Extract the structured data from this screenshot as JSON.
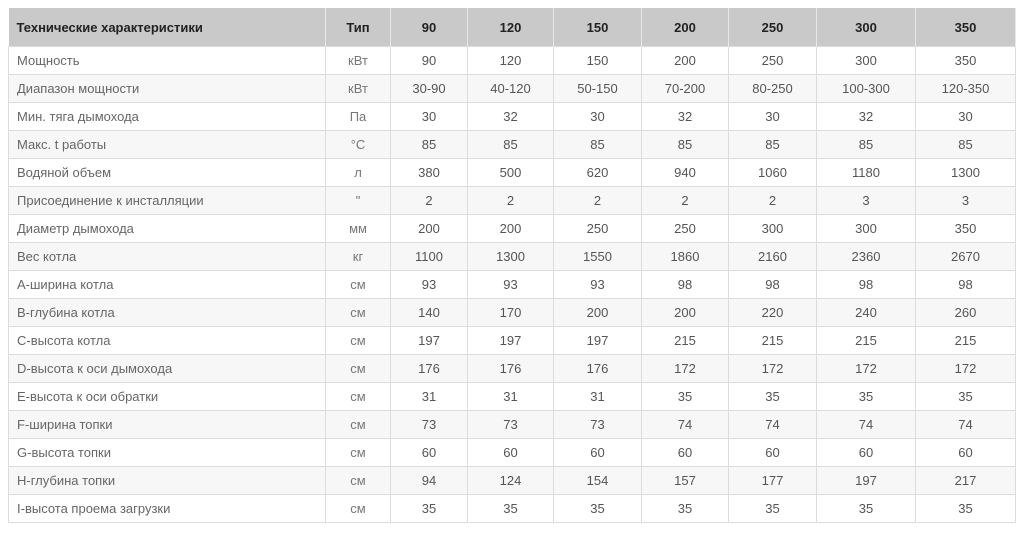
{
  "table": {
    "headers": [
      "Технические характеристики",
      "Тип",
      "90",
      "120",
      "150",
      "200",
      "250",
      "300",
      "350"
    ],
    "rows": [
      [
        "Мощность",
        "кВт",
        "90",
        "120",
        "150",
        "200",
        "250",
        "300",
        "350"
      ],
      [
        "Диапазон мощности",
        "кВт",
        "30-90",
        "40-120",
        "50-150",
        "70-200",
        "80-250",
        "100-300",
        "120-350"
      ],
      [
        "Мин. тяга дымохода",
        "Па",
        "30",
        "32",
        "30",
        "32",
        "30",
        "32",
        "30"
      ],
      [
        "Макс. t работы",
        "°C",
        "85",
        "85",
        "85",
        "85",
        "85",
        "85",
        "85"
      ],
      [
        "Водяной объем",
        "л",
        "380",
        "500",
        "620",
        "940",
        "1060",
        "1180",
        "1300"
      ],
      [
        "Присоединение к инсталляции",
        "\"",
        "2",
        "2",
        "2",
        "2",
        "2",
        "3",
        "3"
      ],
      [
        "Диаметр дымохода",
        "мм",
        "200",
        "200",
        "250",
        "250",
        "300",
        "300",
        "350"
      ],
      [
        "Вес котла",
        "кг",
        "1100",
        "1300",
        "1550",
        "1860",
        "2160",
        "2360",
        "2670"
      ],
      [
        "A-ширина котла",
        "см",
        "93",
        "93",
        "93",
        "98",
        "98",
        "98",
        "98"
      ],
      [
        "B-глубина котла",
        "см",
        "140",
        "170",
        "200",
        "200",
        "220",
        "240",
        "260"
      ],
      [
        "C-высота котла",
        "см",
        "197",
        "197",
        "197",
        "215",
        "215",
        "215",
        "215"
      ],
      [
        "D-высота к оси дымохода",
        "см",
        "176",
        "176",
        "176",
        "172",
        "172",
        "172",
        "172"
      ],
      [
        "E-высота к оси обратки",
        "см",
        "31",
        "31",
        "31",
        "35",
        "35",
        "35",
        "35"
      ],
      [
        "F-ширина топки",
        "см",
        "73",
        "73",
        "73",
        "74",
        "74",
        "74",
        "74"
      ],
      [
        "G-высота топки",
        "см",
        "60",
        "60",
        "60",
        "60",
        "60",
        "60",
        "60"
      ],
      [
        "H-глубина топки",
        "см",
        "94",
        "124",
        "154",
        "157",
        "177",
        "197",
        "217"
      ],
      [
        "I-высота проема загрузки",
        "см",
        "35",
        "35",
        "35",
        "35",
        "35",
        "35",
        "35"
      ]
    ]
  }
}
